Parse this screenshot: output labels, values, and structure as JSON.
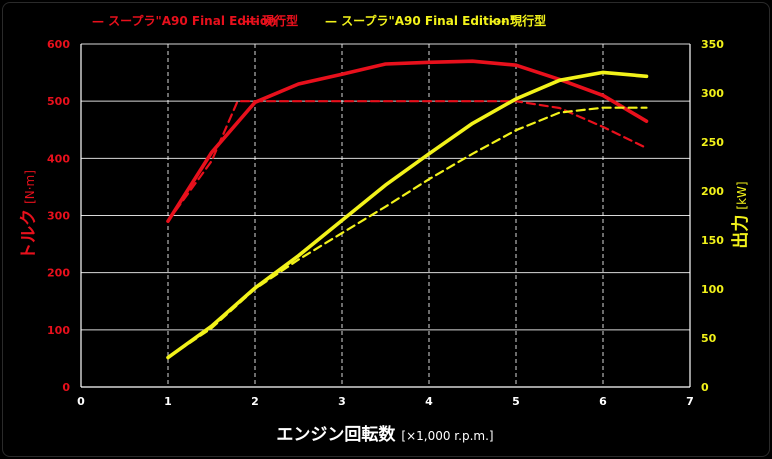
{
  "chart_data": {
    "type": "line",
    "xlabel": "エンジン回転数",
    "xlabel_unit": "[×1,000 r.p.m.]",
    "ylabel_left": "トルク",
    "ylabel_left_unit": "[N·m]",
    "ylabel_right": "出力",
    "ylabel_right_unit": "[kW]",
    "xlim": [
      0,
      7
    ],
    "ylim_left": [
      0,
      600
    ],
    "ylim_right": [
      0,
      350
    ],
    "x_ticks": [
      "0",
      "1",
      "2",
      "3",
      "4",
      "5",
      "6",
      "7"
    ],
    "y_left_ticks": [
      "0",
      "100",
      "200",
      "300",
      "400",
      "500",
      "600"
    ],
    "y_right_ticks": [
      "0",
      "50",
      "100",
      "150",
      "200",
      "250",
      "300",
      "350"
    ],
    "grid": "horizontal solid, vertical dashed",
    "legend_position": "top",
    "colors": {
      "torque": "#e8101c",
      "power": "#f2f21a",
      "background": "#000000",
      "grid": "#ffffff"
    },
    "series": [
      {
        "name": "スープラ\"A90 Final Edition\"",
        "legend_key": "—",
        "metric": "torque",
        "axis": "left",
        "style": "solid",
        "color": "#e8101c",
        "x": [
          1.0,
          1.5,
          2.0,
          2.5,
          3.0,
          3.5,
          4.0,
          4.5,
          5.0,
          5.5,
          6.0,
          6.5
        ],
        "y": [
          290,
          410,
          498,
          530,
          547,
          565,
          568,
          570,
          563,
          538,
          510,
          465
        ]
      },
      {
        "name": "現行型",
        "legend_key": "---",
        "metric": "torque",
        "axis": "left",
        "style": "dashed",
        "color": "#e8101c",
        "x": [
          1.0,
          1.5,
          1.8,
          2.5,
          3.0,
          4.0,
          5.0,
          5.5,
          6.0,
          6.5
        ],
        "y": [
          290,
          395,
          500,
          500,
          500,
          500,
          500,
          488,
          455,
          418
        ]
      },
      {
        "name": "スープラ\"A90 Final Edition\"",
        "legend_key": "—",
        "metric": "power",
        "axis": "right",
        "style": "solid",
        "color": "#f2f21a",
        "x": [
          1.0,
          1.5,
          2.0,
          2.5,
          3.0,
          3.5,
          4.0,
          4.5,
          5.0,
          5.5,
          6.0,
          6.5
        ],
        "y": [
          30,
          62,
          101,
          134,
          170,
          206,
          238,
          269,
          294,
          313,
          321,
          317
        ]
      },
      {
        "name": "現行型",
        "legend_key": "---",
        "metric": "power",
        "axis": "right",
        "style": "dashed",
        "color": "#f2f21a",
        "x": [
          1.0,
          1.5,
          2.0,
          2.5,
          3.0,
          3.5,
          4.0,
          4.5,
          5.0,
          5.5,
          6.0,
          6.5
        ],
        "y": [
          30,
          60,
          100,
          130,
          157,
          184,
          212,
          238,
          262,
          280,
          285,
          285
        ]
      }
    ]
  }
}
